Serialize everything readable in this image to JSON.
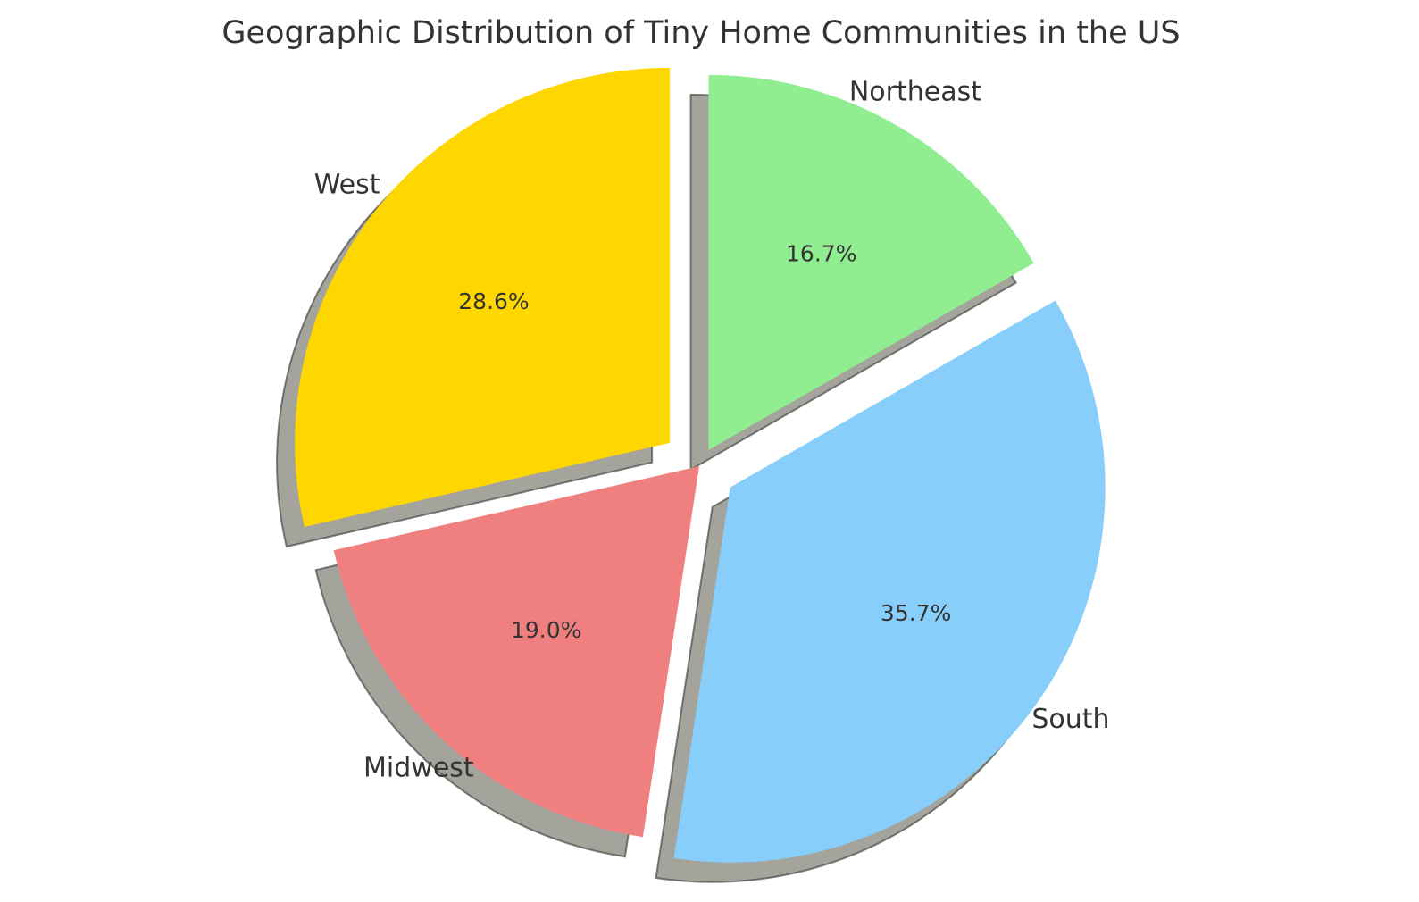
{
  "chart_data": {
    "type": "pie",
    "title": "Geographic Distribution of Tiny Home Communities in the US",
    "categories": [
      "West",
      "Midwest",
      "South",
      "Northeast"
    ],
    "values": [
      28.6,
      19.0,
      35.7,
      16.7
    ],
    "value_labels": [
      "28.6%",
      "19.0%",
      "35.7%",
      "16.7%"
    ],
    "colors": [
      "#ffd700",
      "#f08080",
      "#87cefa",
      "#90ee90"
    ],
    "explode": [
      0.1,
      0,
      0.1,
      0.05
    ],
    "start_angle": 90,
    "shadow": true
  }
}
